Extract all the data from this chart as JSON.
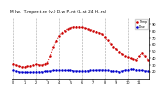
{
  "title": "  M lw   T mp r tur  (v ) D w P int (L st 24 H urs)",
  "bg_color": "#ffffff",
  "grid_color": "#999999",
  "temp_color": "#cc0000",
  "dew_color": "#0000cc",
  "temp_values": [
    32,
    28,
    27,
    29,
    31,
    30,
    34,
    60,
    75,
    82,
    86,
    87,
    85,
    83,
    80,
    77,
    68,
    58,
    50,
    44,
    40,
    37,
    48,
    38
  ],
  "dew_values": [
    22,
    20,
    19,
    19,
    20,
    20,
    21,
    22,
    22,
    22,
    22,
    21,
    21,
    22,
    22,
    23,
    22,
    21,
    20,
    22,
    24,
    23,
    22,
    21
  ],
  "ylim": [
    10,
    100
  ],
  "yticks": [
    20,
    30,
    40,
    50,
    60,
    70,
    80,
    90
  ],
  "n_points": 48,
  "vgrid_every": 8,
  "title_fontsize": 3.2,
  "tick_fontsize": 2.5,
  "legend_fontsize": 2.2,
  "linewidth": 0.7,
  "markersize": 1.5
}
